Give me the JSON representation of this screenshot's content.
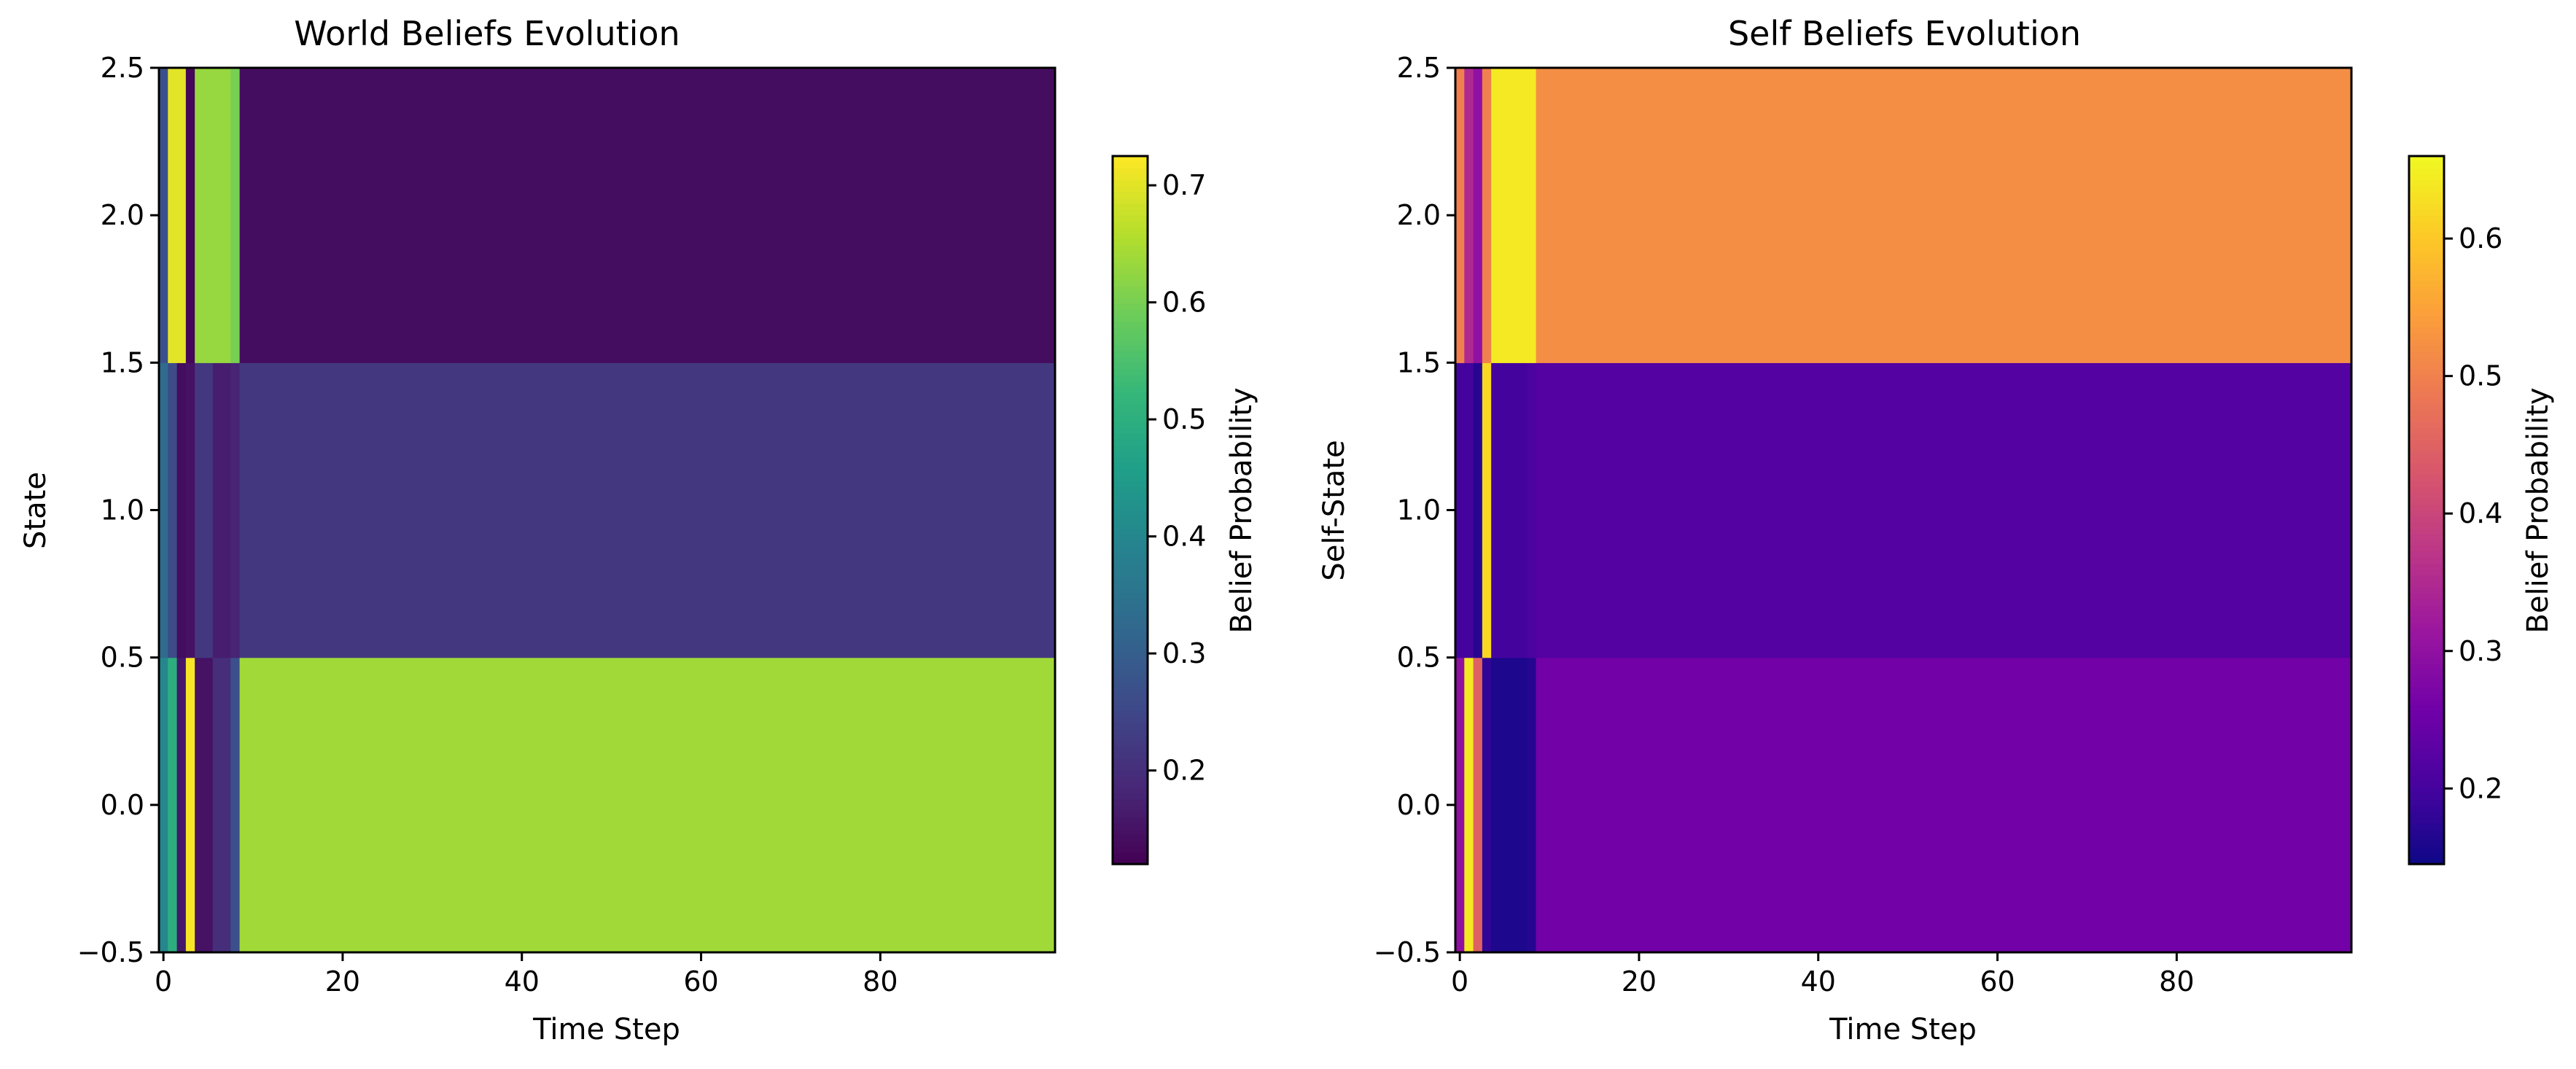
{
  "chart_data": [
    {
      "type": "heatmap",
      "title": "World Beliefs Evolution",
      "xlabel": "Time Step",
      "ylabel": "State",
      "colormap": "viridis",
      "colorbar_label": "Belief Probability",
      "vmin": 0.12,
      "vmax": 0.725,
      "colorbar_ticks": [
        "0.2",
        "0.3",
        "0.4",
        "0.5",
        "0.6",
        "0.7"
      ],
      "xticks": [
        "0",
        "20",
        "40",
        "60",
        "80"
      ],
      "yticks": [
        "−0.5",
        "0.0",
        "0.5",
        "1.0",
        "1.5",
        "2.0",
        "2.5"
      ],
      "xlim": [
        -0.5,
        99.5
      ],
      "ylim": [
        -0.5,
        2.5
      ],
      "states": [
        0,
        1,
        2
      ],
      "n_steps": 100,
      "columns": [
        [
          0.4,
          0.33,
          0.27
        ],
        [
          0.5,
          0.26,
          0.7
        ],
        [
          0.16,
          0.14,
          0.7
        ],
        [
          0.72,
          0.15,
          0.13
        ],
        [
          0.15,
          0.22,
          0.63
        ],
        [
          0.15,
          0.22,
          0.63
        ],
        [
          0.2,
          0.17,
          0.63
        ],
        [
          0.2,
          0.17,
          0.63
        ],
        [
          0.27,
          0.18,
          0.6
        ]
      ],
      "steady_state": [
        0.64,
        0.22,
        0.14
      ]
    },
    {
      "type": "heatmap",
      "title": "Self Beliefs Evolution",
      "xlabel": "Time Step",
      "ylabel": "Self-State",
      "colormap": "plasma",
      "colorbar_label": "Belief Probability",
      "vmin": 0.145,
      "vmax": 0.66,
      "colorbar_ticks": [
        "0.2",
        "0.3",
        "0.4",
        "0.5",
        "0.6"
      ],
      "xticks": [
        "0",
        "20",
        "40",
        "60",
        "80"
      ],
      "yticks": [
        "−0.5",
        "0.0",
        "0.5",
        "1.0",
        "1.5",
        "2.0",
        "2.5"
      ],
      "xlim": [
        -0.5,
        99.5
      ],
      "ylim": [
        -0.5,
        2.5
      ],
      "states": [
        0,
        1,
        2
      ],
      "n_steps": 100,
      "columns": [
        [
          0.3,
          0.2,
          0.5
        ],
        [
          0.64,
          0.2,
          0.35
        ],
        [
          0.45,
          0.17,
          0.3
        ],
        [
          0.18,
          0.62,
          0.5
        ],
        [
          0.16,
          0.2,
          0.64
        ],
        [
          0.16,
          0.2,
          0.64
        ],
        [
          0.16,
          0.2,
          0.64
        ],
        [
          0.16,
          0.2,
          0.64
        ],
        [
          0.17,
          0.21,
          0.64
        ]
      ],
      "steady_state": [
        0.26,
        0.22,
        0.52
      ]
    }
  ]
}
